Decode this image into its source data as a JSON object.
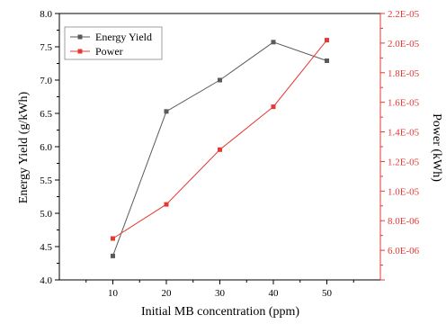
{
  "chart_data": {
    "type": "line",
    "x": [
      10,
      20,
      30,
      40,
      50
    ],
    "xticks": [
      "10",
      "20",
      "30",
      "40",
      "50"
    ],
    "xlabel": "Initial MB concentration (ppm)",
    "xlim": [
      0,
      60
    ],
    "ylabel_left": "Energy Yield (g/kWh)",
    "ylim_left": [
      4.0,
      8.0
    ],
    "yticks_left": [
      "4.0",
      "4.5",
      "5.0",
      "5.5",
      "6.0",
      "6.5",
      "7.0",
      "7.5",
      "8.0"
    ],
    "ylabel_right": "Power (kWh)",
    "ylim_right": [
      4e-06,
      2.2e-05
    ],
    "yticks_right": [
      "",
      "6.0E-06",
      "8.0E-06",
      "1.0E-05",
      "1.2E-05",
      "1.4E-05",
      "1.6E-05",
      "1.8E-05",
      "2.0E-05",
      "2.2E-05"
    ],
    "series": [
      {
        "name": "Energy Yield",
        "axis": "left",
        "color": "#5a5a5a",
        "marker": "square",
        "values": [
          4.36,
          6.53,
          7.0,
          7.57,
          7.29
        ]
      },
      {
        "name": "Power",
        "axis": "right",
        "color": "#e53935",
        "marker": "square",
        "values": [
          6.8e-06,
          9.1e-06,
          1.28e-05,
          1.57e-05,
          2.02e-05
        ]
      }
    ],
    "legend_position": "top-left",
    "grid": false
  }
}
